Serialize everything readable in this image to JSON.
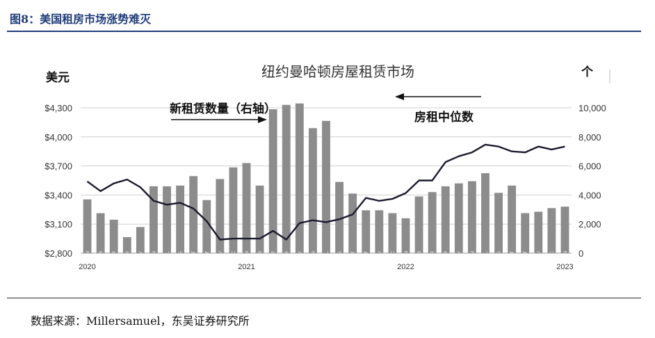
{
  "header": {
    "figure_title": "图8：美国租房市场涨势难灭"
  },
  "source": "数据来源：Millersamuel，东吴证券研究所",
  "chart_data": {
    "type": "bar+line",
    "title": "纽约曼哈顿房屋租赁市场",
    "left_unit": "美元",
    "right_unit": "个",
    "left_ticks": [
      "$4,300",
      "$4,000",
      "$3,700",
      "$3,400",
      "$3,100",
      "$2,800"
    ],
    "right_ticks": [
      "10,000",
      "8,000",
      "6,000",
      "4,000",
      "2,000",
      "0"
    ],
    "left_range": [
      2800,
      4300
    ],
    "right_range": [
      0,
      10000
    ],
    "years": [
      "2020",
      "2021",
      "2022",
      "2023"
    ],
    "categories": [
      "JAN",
      "FEB",
      "MAR",
      "APR",
      "MAY",
      "JUN",
      "JUL",
      "AUG",
      "SEPT",
      "OCT",
      "NOV",
      "DEC",
      "JAN",
      "FEB",
      "MAR",
      "APR",
      "MAY",
      "JUN",
      "JUL",
      "AUG",
      "SEPT",
      "OCT",
      "NOV",
      "DEC",
      "JAN",
      "FEB",
      "MAR",
      "APR",
      "MAY",
      "JUN",
      "JUL",
      "AUG",
      "SEPT",
      "OCT",
      "NOV",
      "DEC",
      "JAN"
    ],
    "series": [
      {
        "name": "新租赁数量（右轴）",
        "type": "bar",
        "axis": "right",
        "color": "#8c8c8c",
        "values": [
          3700,
          2750,
          2300,
          1100,
          1800,
          4600,
          4600,
          4650,
          5300,
          3650,
          5100,
          5900,
          6200,
          4650,
          9900,
          10200,
          10300,
          8600,
          9100,
          4900,
          4100,
          2950,
          2950,
          2750,
          2400,
          3900,
          4200,
          4600,
          4800,
          4950,
          5500,
          4150,
          4650,
          2750,
          2850,
          3100,
          3200
        ]
      },
      {
        "name": "房租中位数",
        "type": "line",
        "axis": "left",
        "color": "#1a1a2e",
        "values": [
          3540,
          3440,
          3520,
          3560,
          3480,
          3340,
          3300,
          3320,
          3260,
          3130,
          2940,
          2950,
          2950,
          2950,
          3030,
          2940,
          3110,
          3140,
          3120,
          3150,
          3200,
          3370,
          3340,
          3360,
          3420,
          3550,
          3550,
          3740,
          3800,
          3840,
          3920,
          3900,
          3850,
          3840,
          3900,
          3870,
          3900
        ]
      }
    ],
    "annotations": [
      {
        "text": "新租赁数量（右轴）",
        "arrow": "right"
      },
      {
        "text": "房租中位数",
        "arrow": "left"
      }
    ],
    "grid": true,
    "legend": "none"
  }
}
